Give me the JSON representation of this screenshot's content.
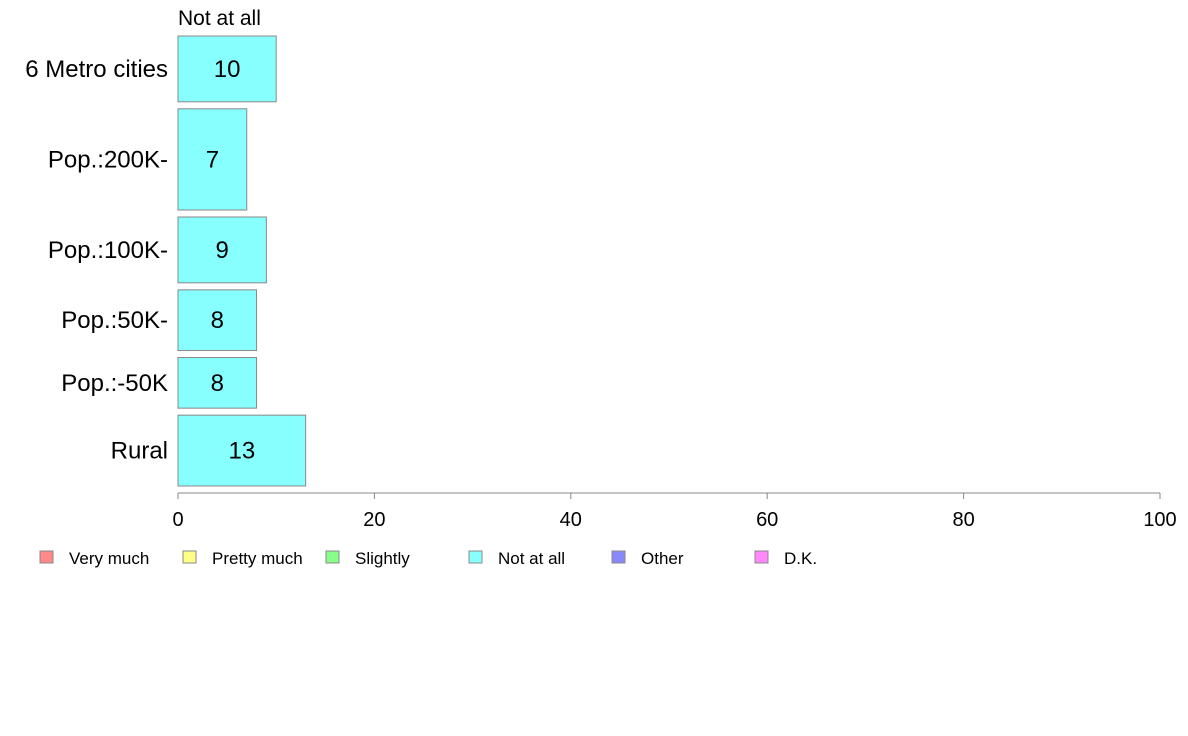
{
  "chart_data": {
    "type": "bar",
    "orientation": "horizontal",
    "categories": [
      "6 Metro cities",
      "Pop.:200K-",
      "Pop.:100K-",
      "Pop.:50K-",
      "Pop.:-50K",
      "Rural"
    ],
    "series": [
      {
        "name": "Not at all",
        "color": "#88ffff",
        "values": [
          10,
          7,
          9,
          8,
          8,
          13
        ]
      }
    ],
    "group_weights": [
      1.3,
      2.0,
      1.3,
      1.2,
      1.0,
      1.4
    ],
    "xlim": [
      0,
      100
    ],
    "xticks": [
      0,
      20,
      40,
      60,
      80,
      100
    ],
    "top_label": "Not at all",
    "grid": false,
    "legend_position": "bottom",
    "legend": [
      {
        "label": "Very much",
        "color": "#ff8888"
      },
      {
        "label": "Pretty much",
        "color": "#ffff88"
      },
      {
        "label": "Slightly",
        "color": "#88ff88"
      },
      {
        "label": "Not at all",
        "color": "#88ffff"
      },
      {
        "label": "Other",
        "color": "#8888ff"
      },
      {
        "label": "D.K.",
        "color": "#ff88ff"
      }
    ]
  }
}
